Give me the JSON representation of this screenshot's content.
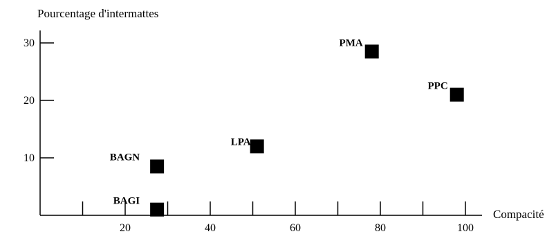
{
  "chart_data": {
    "type": "scatter",
    "title": "",
    "xlabel": "Compacité",
    "ylabel": "Pourcentage d'intermattes",
    "xlim": [
      0,
      105
    ],
    "ylim": [
      0,
      33
    ],
    "x_ticks": [
      10,
      20,
      30,
      40,
      50,
      60,
      70,
      80,
      90,
      100
    ],
    "x_tick_labels": [
      "20",
      "40",
      "60",
      "80",
      "100"
    ],
    "x_tick_label_values": [
      20,
      40,
      60,
      80,
      100
    ],
    "y_ticks": [
      10,
      20,
      30
    ],
    "y_tick_labels": [
      "10",
      "20",
      "30"
    ],
    "grid": false,
    "marker": "square",
    "marker_color": "#000000",
    "points": [
      {
        "label": "BAGI",
        "x": 27.5,
        "y": 1
      },
      {
        "label": "BAGN",
        "x": 27.5,
        "y": 8.5
      },
      {
        "label": "LPA",
        "x": 51,
        "y": 12
      },
      {
        "label": "PMA",
        "x": 78,
        "y": 28.5
      },
      {
        "label": "PPC",
        "x": 98,
        "y": 21
      }
    ]
  }
}
